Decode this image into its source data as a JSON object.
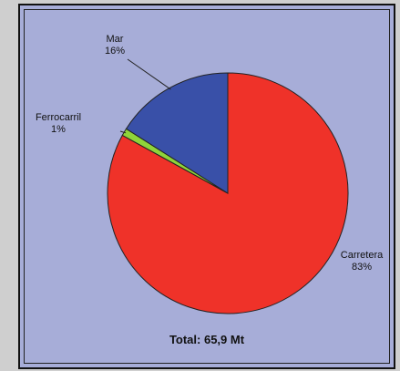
{
  "chart_data": {
    "type": "pie",
    "slices": [
      {
        "name": "Carretera",
        "value": 83,
        "label": "83%",
        "color": "#ef3229"
      },
      {
        "name": "Ferrocarril",
        "value": 1,
        "label": "1%",
        "color": "#8fd43a"
      },
      {
        "name": "Mar",
        "value": 16,
        "label": "16%",
        "color": "#3950a8"
      }
    ],
    "total_label": "Total: 65,9 Mt",
    "background_color": "#a7add8"
  }
}
